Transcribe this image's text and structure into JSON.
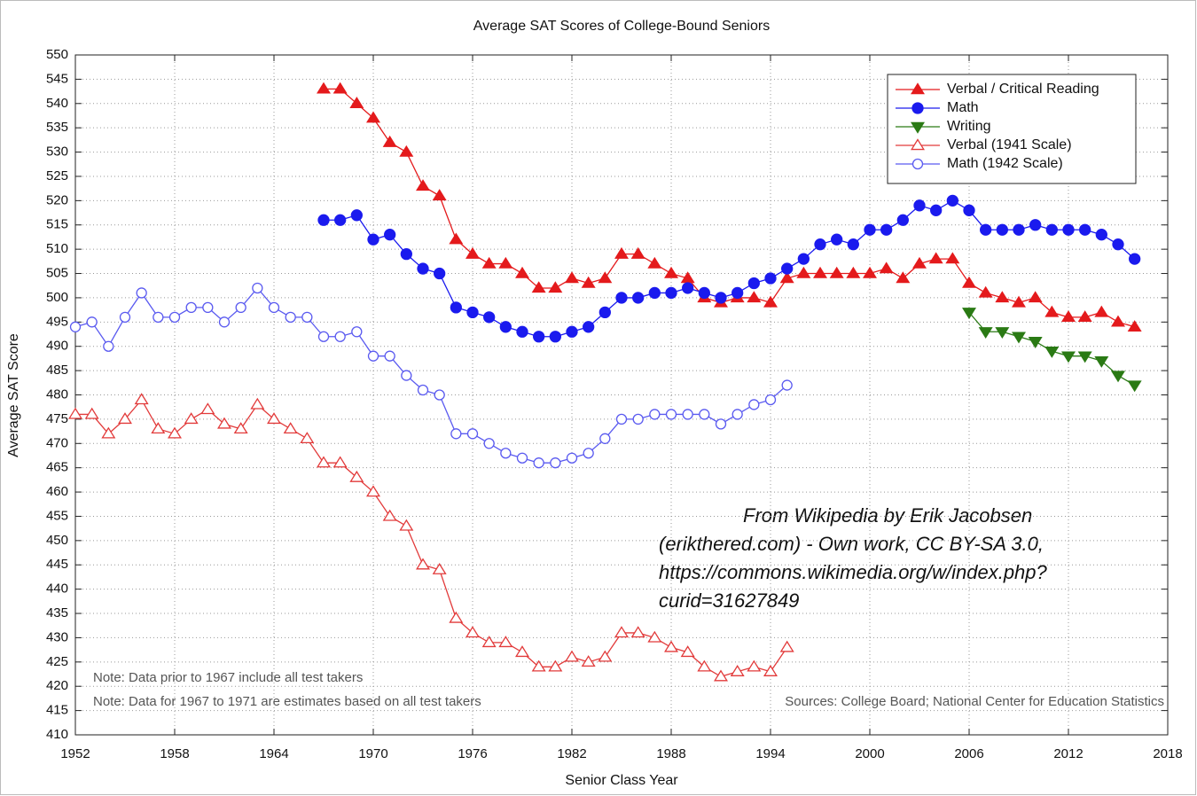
{
  "chart_data": {
    "type": "line",
    "title": "Average SAT Scores of College-Bound Seniors",
    "x_label": "Senior Class Year",
    "y_label": "Average SAT Score",
    "xlim": [
      1952,
      2018
    ],
    "xticks": [
      1952,
      1958,
      1964,
      1970,
      1976,
      1982,
      1988,
      1994,
      2000,
      2006,
      2012,
      2018
    ],
    "ylim": [
      410,
      550
    ],
    "yticks": [
      410,
      415,
      420,
      425,
      430,
      435,
      440,
      445,
      450,
      455,
      460,
      465,
      470,
      475,
      480,
      485,
      490,
      495,
      500,
      505,
      510,
      515,
      520,
      525,
      530,
      535,
      540,
      545,
      550
    ],
    "grid": true,
    "legend": "top-right",
    "notes": [
      "Note: Data prior to 1967 include all test takers",
      "Note: Data for 1967 to 1971 are estimates based on all test takers"
    ],
    "sources": "Sources: College Board; National Center for Education Statistics",
    "attribution": [
      "From Wikipedia by Erik Jacobsen",
      "(erikthered.com) - Own work, CC BY-SA 3.0,",
      "https://commons.wikimedia.org/w/index.php?",
      "curid=31627849"
    ],
    "series": [
      {
        "name": "Verbal / Critical Reading",
        "color": "#e41a1c",
        "marker": "triangle-up",
        "filled": true,
        "x": [
          1967,
          1968,
          1969,
          1970,
          1971,
          1972,
          1973,
          1974,
          1975,
          1976,
          1977,
          1978,
          1979,
          1980,
          1981,
          1982,
          1983,
          1984,
          1985,
          1986,
          1987,
          1988,
          1989,
          1990,
          1991,
          1992,
          1993,
          1994,
          1995,
          1996,
          1997,
          1998,
          1999,
          2000,
          2001,
          2002,
          2003,
          2004,
          2005,
          2006,
          2007,
          2008,
          2009,
          2010,
          2011,
          2012,
          2013,
          2014,
          2015,
          2016
        ],
        "values": [
          543,
          543,
          540,
          537,
          532,
          530,
          523,
          521,
          512,
          509,
          507,
          507,
          505,
          502,
          502,
          504,
          503,
          504,
          509,
          509,
          507,
          505,
          504,
          500,
          499,
          500,
          500,
          499,
          504,
          505,
          505,
          505,
          505,
          505,
          506,
          504,
          507,
          508,
          508,
          503,
          501,
          500,
          499,
          500,
          497,
          496,
          496,
          497,
          495,
          494
        ]
      },
      {
        "name": "Math",
        "color": "#1a1aee",
        "marker": "circle",
        "filled": true,
        "x": [
          1967,
          1968,
          1969,
          1970,
          1971,
          1972,
          1973,
          1974,
          1975,
          1976,
          1977,
          1978,
          1979,
          1980,
          1981,
          1982,
          1983,
          1984,
          1985,
          1986,
          1987,
          1988,
          1989,
          1990,
          1991,
          1992,
          1993,
          1994,
          1995,
          1996,
          1997,
          1998,
          1999,
          2000,
          2001,
          2002,
          2003,
          2004,
          2005,
          2006,
          2007,
          2008,
          2009,
          2010,
          2011,
          2012,
          2013,
          2014,
          2015,
          2016
        ],
        "values": [
          516,
          516,
          517,
          512,
          513,
          509,
          506,
          505,
          498,
          497,
          496,
          494,
          493,
          492,
          492,
          493,
          494,
          497,
          500,
          500,
          501,
          501,
          502,
          501,
          500,
          501,
          503,
          504,
          506,
          508,
          511,
          512,
          511,
          514,
          514,
          516,
          519,
          518,
          520,
          518,
          514,
          514,
          514,
          515,
          514,
          514,
          514,
          513,
          511,
          508
        ]
      },
      {
        "name": "Writing",
        "color": "#2a7a14",
        "marker": "triangle-down",
        "filled": true,
        "x": [
          2006,
          2007,
          2008,
          2009,
          2010,
          2011,
          2012,
          2013,
          2014,
          2015,
          2016
        ],
        "values": [
          497,
          493,
          493,
          492,
          491,
          489,
          488,
          488,
          487,
          484,
          482
        ]
      },
      {
        "name": "Verbal (1941 Scale)",
        "color": "#e23a3a",
        "marker": "triangle-up",
        "filled": false,
        "x": [
          1952,
          1953,
          1954,
          1955,
          1956,
          1957,
          1958,
          1959,
          1960,
          1961,
          1962,
          1963,
          1964,
          1965,
          1966,
          1967,
          1968,
          1969,
          1970,
          1971,
          1972,
          1973,
          1974,
          1975,
          1976,
          1977,
          1978,
          1979,
          1980,
          1981,
          1982,
          1983,
          1984,
          1985,
          1986,
          1987,
          1988,
          1989,
          1990,
          1991,
          1992,
          1993,
          1994,
          1995
        ],
        "values": [
          476,
          476,
          472,
          475,
          479,
          473,
          472,
          475,
          477,
          474,
          473,
          478,
          475,
          473,
          471,
          466,
          466,
          463,
          460,
          455,
          453,
          445,
          444,
          434,
          431,
          429,
          429,
          427,
          424,
          424,
          426,
          425,
          426,
          431,
          431,
          430,
          428,
          427,
          424,
          422,
          423,
          424,
          423,
          428
        ]
      },
      {
        "name": "Math (1942 Scale)",
        "color": "#5a5af0",
        "marker": "circle",
        "filled": false,
        "x": [
          1952,
          1953,
          1954,
          1955,
          1956,
          1957,
          1958,
          1959,
          1960,
          1961,
          1962,
          1963,
          1964,
          1965,
          1966,
          1967,
          1968,
          1969,
          1970,
          1971,
          1972,
          1973,
          1974,
          1975,
          1976,
          1977,
          1978,
          1979,
          1980,
          1981,
          1982,
          1983,
          1984,
          1985,
          1986,
          1987,
          1988,
          1989,
          1990,
          1991,
          1992,
          1993,
          1994,
          1995
        ],
        "values": [
          494,
          495,
          490,
          496,
          501,
          496,
          496,
          498,
          498,
          495,
          498,
          502,
          498,
          496,
          496,
          492,
          492,
          493,
          488,
          488,
          484,
          481,
          480,
          472,
          472,
          470,
          468,
          467,
          466,
          466,
          467,
          468,
          471,
          475,
          475,
          476,
          476,
          476,
          476,
          474,
          476,
          478,
          479,
          482
        ]
      }
    ]
  }
}
